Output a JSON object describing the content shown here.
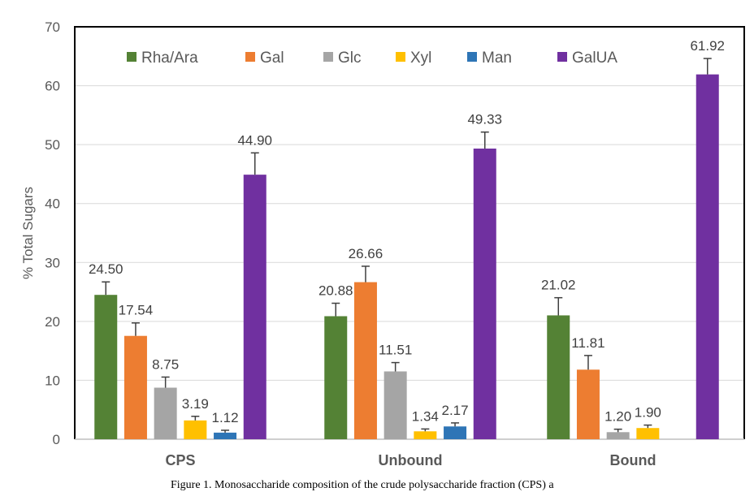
{
  "chart_data": {
    "type": "bar",
    "title": "",
    "xlabel": "",
    "ylabel": "% Total Sugars",
    "ylim": [
      0,
      70
    ],
    "yticks": [
      0,
      10,
      20,
      30,
      40,
      50,
      60,
      70
    ],
    "grid": true,
    "legend_placement": "top",
    "categories": [
      "CPS",
      "Unbound",
      "Bound"
    ],
    "series": [
      {
        "name": "Rha/Ara",
        "color": "#548235",
        "values": [
          24.5,
          20.88,
          21.02
        ],
        "labels": [
          "24.50",
          "20.88",
          "21.02"
        ],
        "errors": [
          2.2,
          2.2,
          3.0
        ]
      },
      {
        "name": "Gal",
        "color": "#ED7D31",
        "values": [
          17.54,
          26.66,
          11.81
        ],
        "labels": [
          "17.54",
          "26.66",
          "11.81"
        ],
        "errors": [
          2.2,
          2.7,
          2.4
        ]
      },
      {
        "name": "Glc",
        "color": "#A5A5A5",
        "values": [
          8.75,
          11.51,
          1.2
        ],
        "labels": [
          "8.75",
          "11.51",
          "1.20"
        ],
        "errors": [
          1.8,
          1.5,
          0.5
        ]
      },
      {
        "name": "Xyl",
        "color": "#FFC000",
        "values": [
          3.19,
          1.34,
          1.9
        ],
        "labels": [
          "3.19",
          "1.34",
          "1.90"
        ],
        "errors": [
          0.7,
          0.4,
          0.5
        ]
      },
      {
        "name": "Man",
        "color": "#2E75B6",
        "values": [
          1.12,
          2.17,
          null
        ],
        "labels": [
          "1.12",
          "2.17",
          null
        ],
        "errors": [
          0.4,
          0.6,
          null
        ]
      },
      {
        "name": "GalUA",
        "color": "#7030A0",
        "values": [
          44.9,
          49.33,
          61.92
        ],
        "labels": [
          "44.90",
          "49.33",
          "61.92"
        ],
        "errors": [
          3.7,
          2.8,
          2.7
        ]
      }
    ]
  },
  "caption": "Figure 1. Monosaccharide composition of the crude polysaccharide fraction (CPS) a"
}
